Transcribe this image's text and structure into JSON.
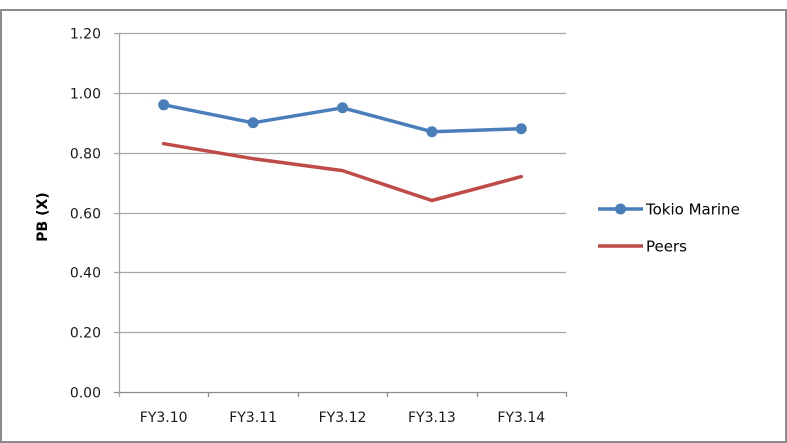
{
  "chart_data": {
    "type": "line",
    "title": "",
    "xlabel": "",
    "ylabel": "PB (X)",
    "categories": [
      "FY3.10",
      "FY3.11",
      "FY3.12",
      "FY3.13",
      "FY3.14"
    ],
    "series": [
      {
        "name": "Tokio Marine",
        "color": "#4a7ebb",
        "marker": "circle",
        "values": [
          0.96,
          0.9,
          0.95,
          0.87,
          0.88
        ]
      },
      {
        "name": "Peers",
        "color": "#be4b48",
        "marker": "none",
        "values": [
          0.83,
          0.78,
          0.74,
          0.64,
          0.72
        ]
      }
    ],
    "ylim": [
      0,
      1.2
    ],
    "yticks": [
      "0.00",
      "0.20",
      "0.40",
      "0.60",
      "0.80",
      "1.00",
      "1.20"
    ],
    "grid": true,
    "legend_position": "right"
  }
}
